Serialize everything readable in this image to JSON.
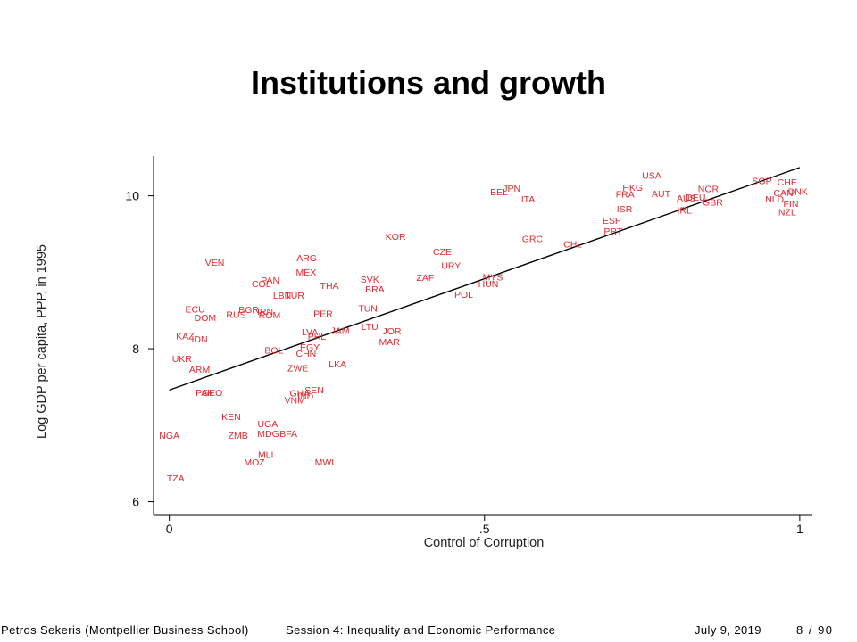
{
  "chart_data": {
    "type": "scatter",
    "title": "Institutions and growth",
    "xlabel": "Control of Corruption",
    "ylabel": "Log GDP per capita, PPP, in 1995",
    "xlim": [
      -0.025,
      1.02
    ],
    "ylim": [
      5.82,
      10.52
    ],
    "x_ticks": [
      {
        "value": 0,
        "label": "0"
      },
      {
        "value": 0.5,
        "label": ".5"
      },
      {
        "value": 1,
        "label": "1"
      }
    ],
    "y_ticks": [
      {
        "value": 6,
        "label": "6"
      },
      {
        "value": 8,
        "label": "8"
      },
      {
        "value": 10,
        "label": "10"
      }
    ],
    "grid": false,
    "marker_color": "#dd2a30",
    "fit_line": {
      "x": [
        0,
        1
      ],
      "y": [
        7.46,
        10.37
      ],
      "color": "#000000"
    },
    "points": [
      {
        "label": "USA",
        "x": 0.765,
        "y": 10.26
      },
      {
        "label": "SGP",
        "x": 0.94,
        "y": 10.19
      },
      {
        "label": "CHE",
        "x": 0.98,
        "y": 10.17
      },
      {
        "label": "HKG",
        "x": 0.735,
        "y": 10.1
      },
      {
        "label": "FRA",
        "x": 0.723,
        "y": 10.01
      },
      {
        "label": "AUT",
        "x": 0.78,
        "y": 10.02
      },
      {
        "label": "NOR",
        "x": 0.855,
        "y": 10.08
      },
      {
        "label": "AUS",
        "x": 0.82,
        "y": 9.96
      },
      {
        "label": "DEU",
        "x": 0.835,
        "y": 9.97
      },
      {
        "label": "GBR",
        "x": 0.862,
        "y": 9.91
      },
      {
        "label": "IRL",
        "x": 0.817,
        "y": 9.8
      },
      {
        "label": "CAN",
        "x": 0.974,
        "y": 10.03
      },
      {
        "label": "DNK",
        "x": 0.997,
        "y": 10.05
      },
      {
        "label": "NLD",
        "x": 0.96,
        "y": 9.95
      },
      {
        "label": "FIN",
        "x": 0.986,
        "y": 9.89
      },
      {
        "label": "NZL",
        "x": 0.98,
        "y": 9.78
      },
      {
        "label": "ISR",
        "x": 0.722,
        "y": 9.82
      },
      {
        "label": "ESP",
        "x": 0.702,
        "y": 9.67
      },
      {
        "label": "PRT",
        "x": 0.704,
        "y": 9.53
      },
      {
        "label": "GRC",
        "x": 0.576,
        "y": 9.43
      },
      {
        "label": "CHL",
        "x": 0.64,
        "y": 9.36
      },
      {
        "label": "JPN",
        "x": 0.543,
        "y": 10.09
      },
      {
        "label": "BEL",
        "x": 0.523,
        "y": 10.04
      },
      {
        "label": "ITA",
        "x": 0.569,
        "y": 9.95
      },
      {
        "label": "KOR",
        "x": 0.359,
        "y": 9.46
      },
      {
        "label": "CZE",
        "x": 0.433,
        "y": 9.26
      },
      {
        "label": "URY",
        "x": 0.447,
        "y": 9.08
      },
      {
        "label": "ZAF",
        "x": 0.406,
        "y": 8.92
      },
      {
        "label": "MYS",
        "x": 0.513,
        "y": 8.93
      },
      {
        "label": "HUN",
        "x": 0.506,
        "y": 8.84
      },
      {
        "label": "POL",
        "x": 0.467,
        "y": 8.7
      },
      {
        "label": "VEN",
        "x": 0.072,
        "y": 9.12
      },
      {
        "label": "ARG",
        "x": 0.218,
        "y": 9.18
      },
      {
        "label": "MEX",
        "x": 0.217,
        "y": 8.99
      },
      {
        "label": "PAN",
        "x": 0.16,
        "y": 8.89
      },
      {
        "label": "COL",
        "x": 0.146,
        "y": 8.84
      },
      {
        "label": "THA",
        "x": 0.254,
        "y": 8.82
      },
      {
        "label": "SVK",
        "x": 0.318,
        "y": 8.9
      },
      {
        "label": "BRA",
        "x": 0.326,
        "y": 8.77
      },
      {
        "label": "LBN",
        "x": 0.179,
        "y": 8.69
      },
      {
        "label": "TUR",
        "x": 0.199,
        "y": 8.69
      },
      {
        "label": "ECU",
        "x": 0.041,
        "y": 8.51
      },
      {
        "label": "DOM",
        "x": 0.057,
        "y": 8.4
      },
      {
        "label": "RUS",
        "x": 0.106,
        "y": 8.44
      },
      {
        "label": "BGR",
        "x": 0.126,
        "y": 8.5
      },
      {
        "label": "IRN",
        "x": 0.152,
        "y": 8.48
      },
      {
        "label": "ROM",
        "x": 0.159,
        "y": 8.43
      },
      {
        "label": "TUN",
        "x": 0.315,
        "y": 8.52
      },
      {
        "label": "PER",
        "x": 0.244,
        "y": 8.45
      },
      {
        "label": "KAZ",
        "x": 0.025,
        "y": 8.16
      },
      {
        "label": "IDN",
        "x": 0.048,
        "y": 8.12
      },
      {
        "label": "LVA",
        "x": 0.223,
        "y": 8.21
      },
      {
        "label": "PHL",
        "x": 0.234,
        "y": 8.15
      },
      {
        "label": "JAM",
        "x": 0.271,
        "y": 8.23
      },
      {
        "label": "LTU",
        "x": 0.318,
        "y": 8.28
      },
      {
        "label": "JOR",
        "x": 0.353,
        "y": 8.22
      },
      {
        "label": "MAR",
        "x": 0.349,
        "y": 8.08
      },
      {
        "label": "EGY",
        "x": 0.223,
        "y": 8.01
      },
      {
        "label": "CHN",
        "x": 0.217,
        "y": 7.93
      },
      {
        "label": "BOL",
        "x": 0.166,
        "y": 7.97
      },
      {
        "label": "UKR",
        "x": 0.02,
        "y": 7.86
      },
      {
        "label": "ARM",
        "x": 0.048,
        "y": 7.72
      },
      {
        "label": "ZWE",
        "x": 0.204,
        "y": 7.74
      },
      {
        "label": "LKA",
        "x": 0.267,
        "y": 7.79
      },
      {
        "label": "PAK",
        "x": 0.056,
        "y": 7.42
      },
      {
        "label": "GEO",
        "x": 0.068,
        "y": 7.42
      },
      {
        "label": "GHA",
        "x": 0.207,
        "y": 7.41
      },
      {
        "label": "SEN",
        "x": 0.23,
        "y": 7.45
      },
      {
        "label": "VNM",
        "x": 0.199,
        "y": 7.32
      },
      {
        "label": "IND",
        "x": 0.216,
        "y": 7.37
      },
      {
        "label": "KEN",
        "x": 0.098,
        "y": 7.1
      },
      {
        "label": "UGA",
        "x": 0.156,
        "y": 7.01
      },
      {
        "label": "ZMB",
        "x": 0.109,
        "y": 6.86
      },
      {
        "label": "MDG",
        "x": 0.157,
        "y": 6.88
      },
      {
        "label": "BFA",
        "x": 0.189,
        "y": 6.88
      },
      {
        "label": "MLI",
        "x": 0.153,
        "y": 6.61
      },
      {
        "label": "MOZ",
        "x": 0.135,
        "y": 6.51
      },
      {
        "label": "MWI",
        "x": 0.246,
        "y": 6.51
      },
      {
        "label": "NGA",
        "x": 0.0,
        "y": 6.86
      },
      {
        "label": "TZA",
        "x": 0.01,
        "y": 6.3
      }
    ]
  },
  "footer": {
    "author": "Petros Sekeris (Montpellier Business School)",
    "session": "Session 4: Inequality and Economic Performance",
    "date": "July 9, 2019",
    "page": "8 / 90"
  }
}
